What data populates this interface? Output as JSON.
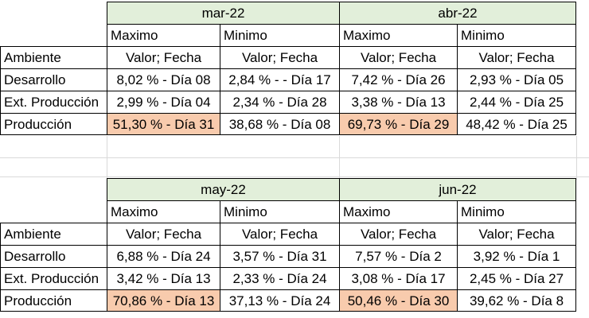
{
  "blocks": [
    {
      "months": [
        "mar-22",
        "abr-22"
      ],
      "sub_headers": [
        "Maximo",
        "Minimo",
        "Maximo",
        "Minimo"
      ],
      "rows": [
        {
          "label": "Ambiente",
          "cells": [
            "Valor; Fecha",
            "Valor; Fecha",
            "Valor; Fecha",
            "Valor; Fecha"
          ],
          "hl": [
            false,
            false,
            false,
            false
          ]
        },
        {
          "label": "Desarrollo",
          "cells": [
            "8,02 %  - Día 08",
            "2,84 % -  - Día 17",
            "7,42 %  - Día 26",
            "2,93 %  - Día 05"
          ],
          "hl": [
            false,
            false,
            false,
            false
          ]
        },
        {
          "label": "Ext. Producción",
          "cells": [
            "2,99 %  - Día 04",
            "2,34 %  - Día 28",
            "3,38 %  - Día 13",
            "2,44 %  - Día 25"
          ],
          "hl": [
            false,
            false,
            false,
            false
          ]
        },
        {
          "label": "Producción",
          "cells": [
            "51,30 %  - Día 31",
            "38,68 %  - Día 08",
            "69,73 %  - Día 29",
            "48,42 %  - Día 25"
          ],
          "hl": [
            true,
            false,
            true,
            false
          ]
        }
      ]
    },
    {
      "months": [
        "may-22",
        "jun-22"
      ],
      "sub_headers": [
        "Maximo",
        "Minimo",
        "Maximo",
        "Minimo"
      ],
      "rows": [
        {
          "label": "Ambiente",
          "cells": [
            "Valor; Fecha",
            "Valor; Fecha",
            "Valor; Fecha",
            "Valor; Fecha"
          ],
          "hl": [
            false,
            false,
            false,
            false
          ]
        },
        {
          "label": "Desarrollo",
          "cells": [
            "6,88 %  - Día 24",
            "3,57 %  - Día 31",
            "7,57 %  - Día 2",
            "3,92 %  - Día 1"
          ],
          "hl": [
            false,
            false,
            false,
            false
          ]
        },
        {
          "label": "Ext. Producción",
          "cells": [
            "3,42 %  - Día 13",
            "2,33 %  - Día 24",
            "3,08 %  - Día 17",
            "2,45 %  - Día 27"
          ],
          "hl": [
            false,
            false,
            false,
            false
          ]
        },
        {
          "label": "Producción",
          "cells": [
            "70,86 %  - Día 13",
            "37,13 %  - Día 24",
            "50,46 %  - Día 30",
            "39,62 %  - Día 8"
          ],
          "hl": [
            true,
            false,
            true,
            false
          ]
        }
      ]
    }
  ],
  "colors": {
    "header_fill": "#e2efda",
    "highlight_fill": "#f8cbad",
    "gridline": "#d9d9d9"
  }
}
